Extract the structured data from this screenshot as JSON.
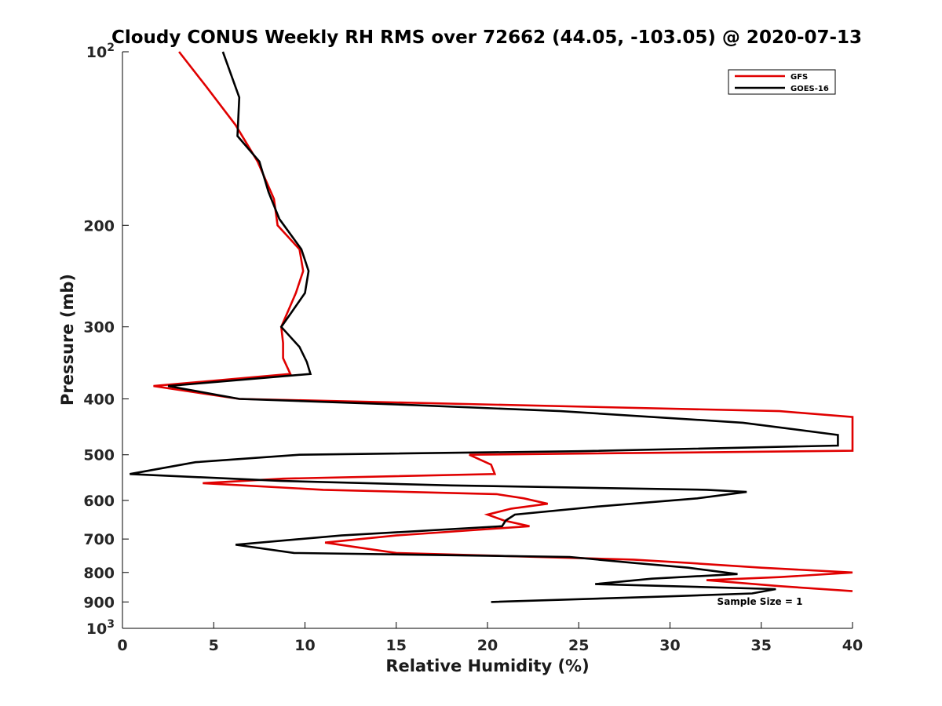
{
  "chart_data": {
    "type": "line",
    "title": "Cloudy CONUS Weekly RH RMS over 72662 (44.05, -103.05) @ 2020-07-13",
    "xlabel": "Relative Humidity (%)",
    "ylabel": "Pressure (mb)",
    "xlim": [
      0,
      40
    ],
    "ylim": [
      100,
      1000
    ],
    "y_scale": "log",
    "y_reversed": false,
    "grid": false,
    "legend_position": "top-right",
    "x_ticks": [
      0,
      5,
      10,
      15,
      20,
      25,
      30,
      35,
      40
    ],
    "x_tick_labels": [
      "0",
      "5",
      "10",
      "15",
      "20",
      "25",
      "30",
      "35",
      "40"
    ],
    "y_ticks": [
      100,
      200,
      300,
      400,
      500,
      600,
      700,
      800,
      900,
      1000
    ],
    "y_tick_labels": [
      "10^2",
      "200",
      "300",
      "400",
      "500",
      "600",
      "700",
      "800",
      "900",
      "10^3"
    ],
    "annotation": "Sample Size = 1",
    "series": [
      {
        "name": "GFS",
        "color": "#e00000",
        "points": [
          [
            3.1,
            100
          ],
          [
            4.6,
            115
          ],
          [
            6.2,
            134
          ],
          [
            7.4,
            155
          ],
          [
            8.3,
            180
          ],
          [
            8.5,
            200
          ],
          [
            9.7,
            220
          ],
          [
            9.9,
            240
          ],
          [
            9.5,
            262
          ],
          [
            8.7,
            300
          ],
          [
            8.8,
            320
          ],
          [
            8.8,
            340
          ],
          [
            9.2,
            362
          ],
          [
            1.7,
            380
          ],
          [
            6.4,
            400
          ],
          [
            36.0,
            420
          ],
          [
            40.0,
            430
          ],
          [
            40.0,
            492
          ],
          [
            19.0,
            500
          ],
          [
            20.2,
            520
          ],
          [
            20.4,
            540
          ],
          [
            8.8,
            550
          ],
          [
            4.4,
            560
          ],
          [
            11.0,
            575
          ],
          [
            20.5,
            585
          ],
          [
            22.0,
            595
          ],
          [
            23.3,
            608
          ],
          [
            21.3,
            620
          ],
          [
            20.0,
            635
          ],
          [
            20.9,
            650
          ],
          [
            22.3,
            665
          ],
          [
            15.0,
            690
          ],
          [
            11.1,
            710
          ],
          [
            15.0,
            740
          ],
          [
            28.0,
            760
          ],
          [
            31.0,
            770
          ],
          [
            35.0,
            785
          ],
          [
            40.0,
            800
          ],
          [
            36.0,
            815
          ],
          [
            32.0,
            825
          ],
          [
            36.0,
            845
          ],
          [
            40.0,
            862
          ]
        ]
      },
      {
        "name": "GOES-16",
        "color": "#000000",
        "points": [
          [
            5.5,
            100
          ],
          [
            6.4,
            120
          ],
          [
            6.3,
            140
          ],
          [
            7.5,
            155
          ],
          [
            8.0,
            175
          ],
          [
            8.6,
            195
          ],
          [
            9.8,
            220
          ],
          [
            10.2,
            240
          ],
          [
            10.0,
            262
          ],
          [
            9.2,
            285
          ],
          [
            8.7,
            300
          ],
          [
            9.7,
            325
          ],
          [
            10.1,
            345
          ],
          [
            10.3,
            362
          ],
          [
            2.5,
            380
          ],
          [
            6.4,
            400
          ],
          [
            16.0,
            410
          ],
          [
            24.0,
            420
          ],
          [
            34.0,
            440
          ],
          [
            39.2,
            462
          ],
          [
            39.2,
            482
          ],
          [
            25.0,
            493
          ],
          [
            9.7,
            500
          ],
          [
            4.0,
            515
          ],
          [
            0.4,
            540
          ],
          [
            8.7,
            555
          ],
          [
            18.0,
            565
          ],
          [
            32.0,
            575
          ],
          [
            34.2,
            580
          ],
          [
            31.5,
            595
          ],
          [
            26.0,
            615
          ],
          [
            21.5,
            635
          ],
          [
            21.0,
            650
          ],
          [
            20.8,
            665
          ],
          [
            12.0,
            690
          ],
          [
            6.2,
            716
          ],
          [
            9.4,
            740
          ],
          [
            24.5,
            752
          ],
          [
            28.0,
            770
          ],
          [
            31.0,
            785
          ],
          [
            33.7,
            805
          ],
          [
            29.0,
            820
          ],
          [
            25.9,
            838
          ],
          [
            30.0,
            845
          ],
          [
            35.8,
            855
          ],
          [
            34.5,
            870
          ],
          [
            30.0,
            880
          ],
          [
            20.2,
            900
          ]
        ]
      }
    ]
  }
}
